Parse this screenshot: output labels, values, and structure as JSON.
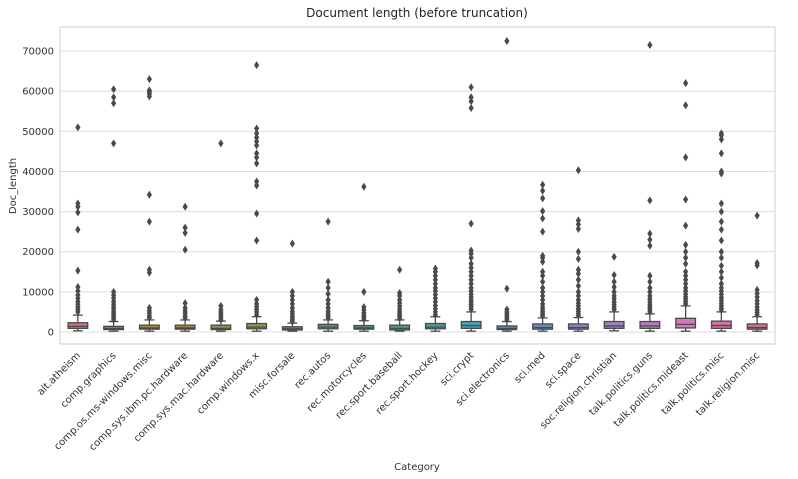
{
  "chart_data": {
    "type": "box",
    "title": "Document length (before truncation)",
    "xlabel": "Category",
    "ylabel": "Doc_length",
    "ylim": [
      -3000,
      76000
    ],
    "yticks": [
      0,
      10000,
      20000,
      30000,
      40000,
      50000,
      60000,
      70000
    ],
    "grid": "horizontal",
    "categories": [
      "alt.atheism",
      "comp.graphics",
      "comp.os.ms-windows.misc",
      "comp.sys.ibm.pc.hardware",
      "comp.sys.mac.hardware",
      "comp.windows.x",
      "misc.forsale",
      "rec.autos",
      "rec.motorcycles",
      "rec.sport.baseball",
      "rec.sport.hockey",
      "sci.crypt",
      "sci.electronics",
      "sci.med",
      "sci.space",
      "soc.religion.christian",
      "talk.politics.guns",
      "talk.politics.mideast",
      "talk.politics.misc",
      "talk.religion.misc"
    ],
    "colors": [
      "#d86f72",
      "#c37c6b",
      "#b58a3f",
      "#9c8f46",
      "#8d9550",
      "#7ea04f",
      "#5b9d5a",
      "#52a06d",
      "#4f9f82",
      "#4d9f93",
      "#4aa0a3",
      "#4aa2b6",
      "#5595c3",
      "#6d8ccc",
      "#8489c9",
      "#9d82c7",
      "#ba7bc4",
      "#d276c0",
      "#d674a8",
      "#d8758c"
    ],
    "boxes": [
      {
        "whislo": 300,
        "q1": 900,
        "med": 1400,
        "q3": 2300,
        "whishi": 4200,
        "fliers": [
          5000,
          5600,
          6200,
          6900,
          7600,
          8400,
          9200,
          10200,
          11200,
          15300,
          25500,
          29800,
          31200,
          32000,
          51000
        ]
      },
      {
        "whislo": 200,
        "q1": 600,
        "med": 900,
        "q3": 1400,
        "whishi": 2600,
        "fliers": [
          3000,
          3500,
          4000,
          4500,
          5000,
          5600,
          6200,
          6900,
          7600,
          8400,
          9200,
          10000,
          47000,
          57000,
          58500,
          60500
        ]
      },
      {
        "whislo": 200,
        "q1": 700,
        "med": 1000,
        "q3": 1700,
        "whishi": 3000,
        "fliers": [
          3500,
          4000,
          4700,
          5300,
          6000,
          14800,
          15500,
          27500,
          34200,
          58700,
          59300,
          59800,
          60200,
          63000
        ]
      },
      {
        "whislo": 200,
        "q1": 700,
        "med": 1000,
        "q3": 1700,
        "whishi": 3000,
        "fliers": [
          3500,
          4000,
          4700,
          5300,
          6000,
          7200,
          20500,
          24700,
          26000,
          31200
        ]
      },
      {
        "whislo": 200,
        "q1": 600,
        "med": 900,
        "q3": 1700,
        "whishi": 2700,
        "fliers": [
          3000,
          3500,
          4000,
          4500,
          5000,
          5600,
          6500,
          47000
        ]
      },
      {
        "whislo": 200,
        "q1": 800,
        "med": 1200,
        "q3": 2100,
        "whishi": 3800,
        "fliers": [
          4300,
          5000,
          5600,
          6300,
          7000,
          8000,
          22800,
          29500,
          36500,
          37500,
          42000,
          43500,
          44500,
          46500,
          47500,
          48500,
          49500,
          50700,
          66500
        ]
      },
      {
        "whislo": 200,
        "q1": 500,
        "med": 800,
        "q3": 1300,
        "whishi": 2200,
        "fliers": [
          2600,
          3000,
          3500,
          4000,
          4600,
          5200,
          6000,
          7000,
          8000,
          9000,
          10000,
          22000
        ]
      },
      {
        "whislo": 200,
        "q1": 800,
        "med": 1200,
        "q3": 1900,
        "whishi": 3000,
        "fliers": [
          3500,
          4000,
          4600,
          5200,
          6000,
          7000,
          8000,
          9500,
          11000,
          12500,
          27500
        ]
      },
      {
        "whislo": 200,
        "q1": 700,
        "med": 1000,
        "q3": 1600,
        "whishi": 2800,
        "fliers": [
          3200,
          3700,
          4200,
          4800,
          5500,
          6200,
          10000,
          36200
        ]
      },
      {
        "whislo": 200,
        "q1": 500,
        "med": 900,
        "q3": 1700,
        "whishi": 3000,
        "fliers": [
          3400,
          3900,
          4400,
          5000,
          5700,
          6400,
          7200,
          8000,
          9000,
          9700,
          15500
        ]
      },
      {
        "whislo": 200,
        "q1": 800,
        "med": 1200,
        "q3": 2100,
        "whishi": 3800,
        "fliers": [
          4300,
          5000,
          5800,
          6600,
          7500,
          8400,
          9300,
          10200,
          11000,
          12000,
          13000,
          14000,
          15000,
          15800
        ]
      },
      {
        "whislo": 200,
        "q1": 900,
        "med": 1600,
        "q3": 2600,
        "whishi": 5000,
        "fliers": [
          5600,
          6200,
          6800,
          7400,
          8000,
          8700,
          9400,
          10200,
          11000,
          12000,
          13000,
          14000,
          15000,
          16000,
          17000,
          18500,
          19500,
          20300,
          27000,
          55800,
          57500,
          58500,
          61000
        ]
      },
      {
        "whislo": 200,
        "q1": 600,
        "med": 900,
        "q3": 1500,
        "whishi": 2600,
        "fliers": [
          3000,
          3500,
          4000,
          4500,
          5000,
          5600,
          10800,
          72500
        ]
      },
      {
        "whislo": 200,
        "q1": 700,
        "med": 1100,
        "q3": 2000,
        "whishi": 3500,
        "fliers": [
          4000,
          4500,
          5000,
          5600,
          6200,
          7000,
          8000,
          9000,
          10000,
          11000,
          12500,
          14000,
          15000,
          17500,
          18500,
          19000,
          25000,
          28300,
          30100,
          33300,
          35200,
          36700
        ]
      },
      {
        "whislo": 200,
        "q1": 700,
        "med": 1100,
        "q3": 2000,
        "whishi": 3600,
        "fliers": [
          4100,
          4600,
          5200,
          5800,
          6500,
          7200,
          8000,
          9000,
          10000,
          11500,
          13000,
          14500,
          15500,
          18200,
          20000,
          25700,
          26800,
          27800,
          40300
        ]
      },
      {
        "whislo": 300,
        "q1": 900,
        "med": 1500,
        "q3": 2600,
        "whishi": 5000,
        "fliers": [
          5600,
          6200,
          6800,
          7500,
          8300,
          9000,
          10000,
          11200,
          12500,
          14200,
          18700
        ]
      },
      {
        "whislo": 200,
        "q1": 900,
        "med": 1500,
        "q3": 2600,
        "whishi": 4500,
        "fliers": [
          5000,
          5600,
          6200,
          6800,
          7500,
          8200,
          9000,
          10000,
          11000,
          12500,
          14000,
          21500,
          23000,
          24500,
          32800,
          71500
        ]
      },
      {
        "whislo": 200,
        "q1": 1000,
        "med": 1900,
        "q3": 3400,
        "whishi": 6500,
        "fliers": [
          7000,
          7600,
          8200,
          8800,
          9500,
          10200,
          11000,
          12000,
          13000,
          14000,
          15000,
          17000,
          18500,
          20000,
          21700,
          26500,
          33000,
          43500,
          56500,
          62000
        ]
      },
      {
        "whislo": 200,
        "q1": 900,
        "med": 1600,
        "q3": 2700,
        "whishi": 5000,
        "fliers": [
          5500,
          6000,
          6600,
          7200,
          7900,
          8600,
          9400,
          10200,
          11000,
          12000,
          13500,
          15000,
          16500,
          18500,
          20000,
          22800,
          25500,
          27500,
          30000,
          32000,
          39500,
          40000,
          44500,
          48000,
          49000,
          49500
        ]
      },
      {
        "whislo": 200,
        "q1": 700,
        "med": 1100,
        "q3": 2000,
        "whishi": 3800,
        "fliers": [
          4300,
          4900,
          5500,
          6200,
          7000,
          7800,
          8700,
          9600,
          10500,
          16600,
          17200,
          29000
        ]
      }
    ]
  }
}
